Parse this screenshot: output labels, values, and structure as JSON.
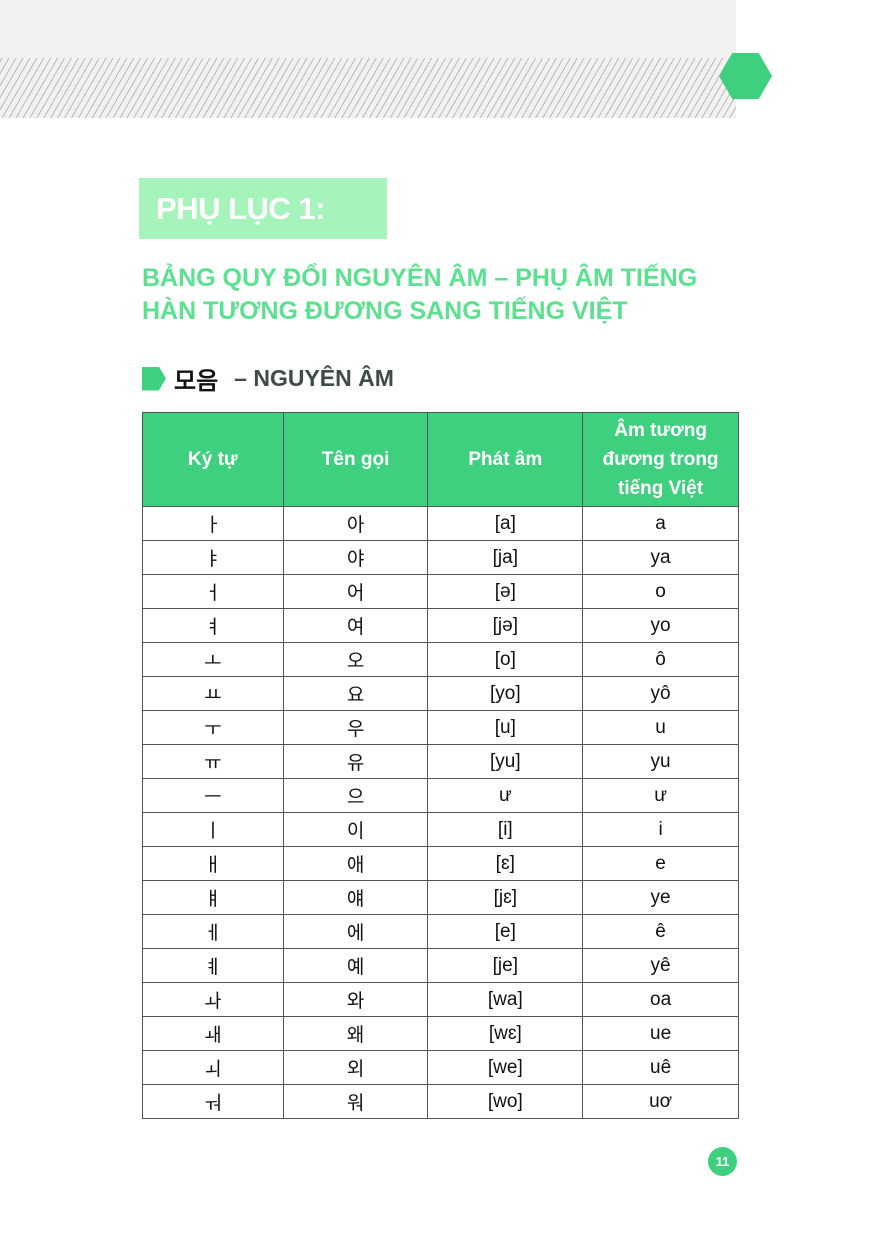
{
  "header": {
    "accent": "#3ecf7f"
  },
  "title": "PHỤ LỤC 1:",
  "subtitle_lines": [
    "BẢNG QUY ĐỔI NGUYÊN ÂM – PHỤ ÂM TIẾNG",
    "HÀN TƯƠNG ĐƯƠNG SANG TIẾNG VIỆT"
  ],
  "section": {
    "korean": "모음",
    "vietnamese": "– NGUYÊN ÂM"
  },
  "table": {
    "headers": [
      "Ký tự",
      "Tên gọi",
      "Phát âm",
      "Âm tương đương trong tiếng Việt"
    ],
    "rows": [
      [
        "ㅏ",
        "아",
        "[a]",
        "a"
      ],
      [
        "ㅑ",
        "야",
        "[ja]",
        "ya"
      ],
      [
        "ㅓ",
        "어",
        "[ə]",
        "o"
      ],
      [
        "ㅕ",
        "여",
        "[jə]",
        "yo"
      ],
      [
        "ㅗ",
        "오",
        "[o]",
        "ô"
      ],
      [
        "ㅛ",
        "요",
        "[yo]",
        "yô"
      ],
      [
        "ㅜ",
        "우",
        "[u]",
        "u"
      ],
      [
        "ㅠ",
        "유",
        "[yu]",
        "yu"
      ],
      [
        "ㅡ",
        "으",
        "ư",
        "ư"
      ],
      [
        "ㅣ",
        "이",
        "[i]",
        "i"
      ],
      [
        "ㅐ",
        "애",
        "[ɛ]",
        "e"
      ],
      [
        "ㅒ",
        "얘",
        "[jɛ]",
        "ye"
      ],
      [
        "ㅔ",
        "에",
        "[e]",
        "ê"
      ],
      [
        "ㅖ",
        "예",
        "[je]",
        "yê"
      ],
      [
        "ㅘ",
        "와",
        "[wa]",
        "oa"
      ],
      [
        "ㅙ",
        "왜",
        "[wɛ]",
        "ue"
      ],
      [
        "ㅚ",
        "외",
        "[we]",
        "uê"
      ],
      [
        "ㅝ",
        "워",
        "[wo]",
        "uơ"
      ]
    ]
  },
  "page_number": "11"
}
